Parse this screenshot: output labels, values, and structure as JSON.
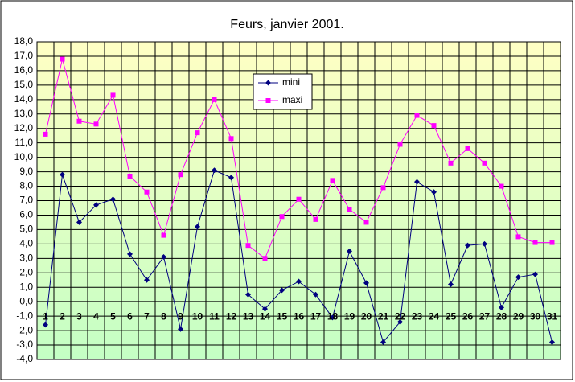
{
  "chart_data": {
    "type": "line",
    "title": "Feurs, janvier 2001.",
    "categories": [
      "1",
      "2",
      "3",
      "4",
      "5",
      "6",
      "7",
      "8",
      "9",
      "10",
      "11",
      "12",
      "13",
      "14",
      "15",
      "16",
      "17",
      "18",
      "19",
      "20",
      "21",
      "22",
      "23",
      "24",
      "25",
      "26",
      "27",
      "28",
      "29",
      "30",
      "31"
    ],
    "series": [
      {
        "name": "mini",
        "color": "#000080",
        "marker": "diamond",
        "values": [
          -1.6,
          8.8,
          5.5,
          6.7,
          7.1,
          3.3,
          1.5,
          3.1,
          -1.9,
          5.2,
          9.1,
          8.6,
          0.5,
          -0.5,
          0.8,
          1.4,
          0.5,
          -1.1,
          3.5,
          1.3,
          -2.8,
          -1.4,
          8.3,
          7.6,
          1.2,
          3.9,
          4.0,
          -0.4,
          1.7,
          1.9,
          -2.8
        ]
      },
      {
        "name": "maxi",
        "color": "#ff00ff",
        "marker": "square",
        "values": [
          11.6,
          16.8,
          12.5,
          12.3,
          14.3,
          8.7,
          7.6,
          4.6,
          8.8,
          11.7,
          14.0,
          11.3,
          3.9,
          3.0,
          5.9,
          7.1,
          5.7,
          8.4,
          6.4,
          5.5,
          7.9,
          10.9,
          12.9,
          12.2,
          9.6,
          10.6,
          9.6,
          8.0,
          4.5,
          4.1,
          4.1
        ]
      }
    ],
    "ylim": [
      -4,
      18
    ],
    "yticks": [
      {
        "value": -4,
        "label": "-4,0"
      },
      {
        "value": -3,
        "label": "-3,0"
      },
      {
        "value": -2,
        "label": "-2,0"
      },
      {
        "value": -1,
        "label": "-1,0"
      },
      {
        "value": 0,
        "label": "0,0"
      },
      {
        "value": 1,
        "label": "1,0"
      },
      {
        "value": 2,
        "label": "2,0"
      },
      {
        "value": 3,
        "label": "3,0"
      },
      {
        "value": 4,
        "label": "4,0"
      },
      {
        "value": 5,
        "label": "5,0"
      },
      {
        "value": 6,
        "label": "6,0"
      },
      {
        "value": 7,
        "label": "7,0"
      },
      {
        "value": 8,
        "label": "8,0"
      },
      {
        "value": 9,
        "label": "9,0"
      },
      {
        "value": 10,
        "label": "10,0"
      },
      {
        "value": 11,
        "label": "11,0"
      },
      {
        "value": 12,
        "label": "12,0"
      },
      {
        "value": 13,
        "label": "13,0"
      },
      {
        "value": 14,
        "label": "14,0"
      },
      {
        "value": 15,
        "label": "15,0"
      },
      {
        "value": 16,
        "label": "16,0"
      },
      {
        "value": 17,
        "label": "17,0"
      },
      {
        "value": 18,
        "label": "18,0"
      }
    ],
    "grid": true
  }
}
